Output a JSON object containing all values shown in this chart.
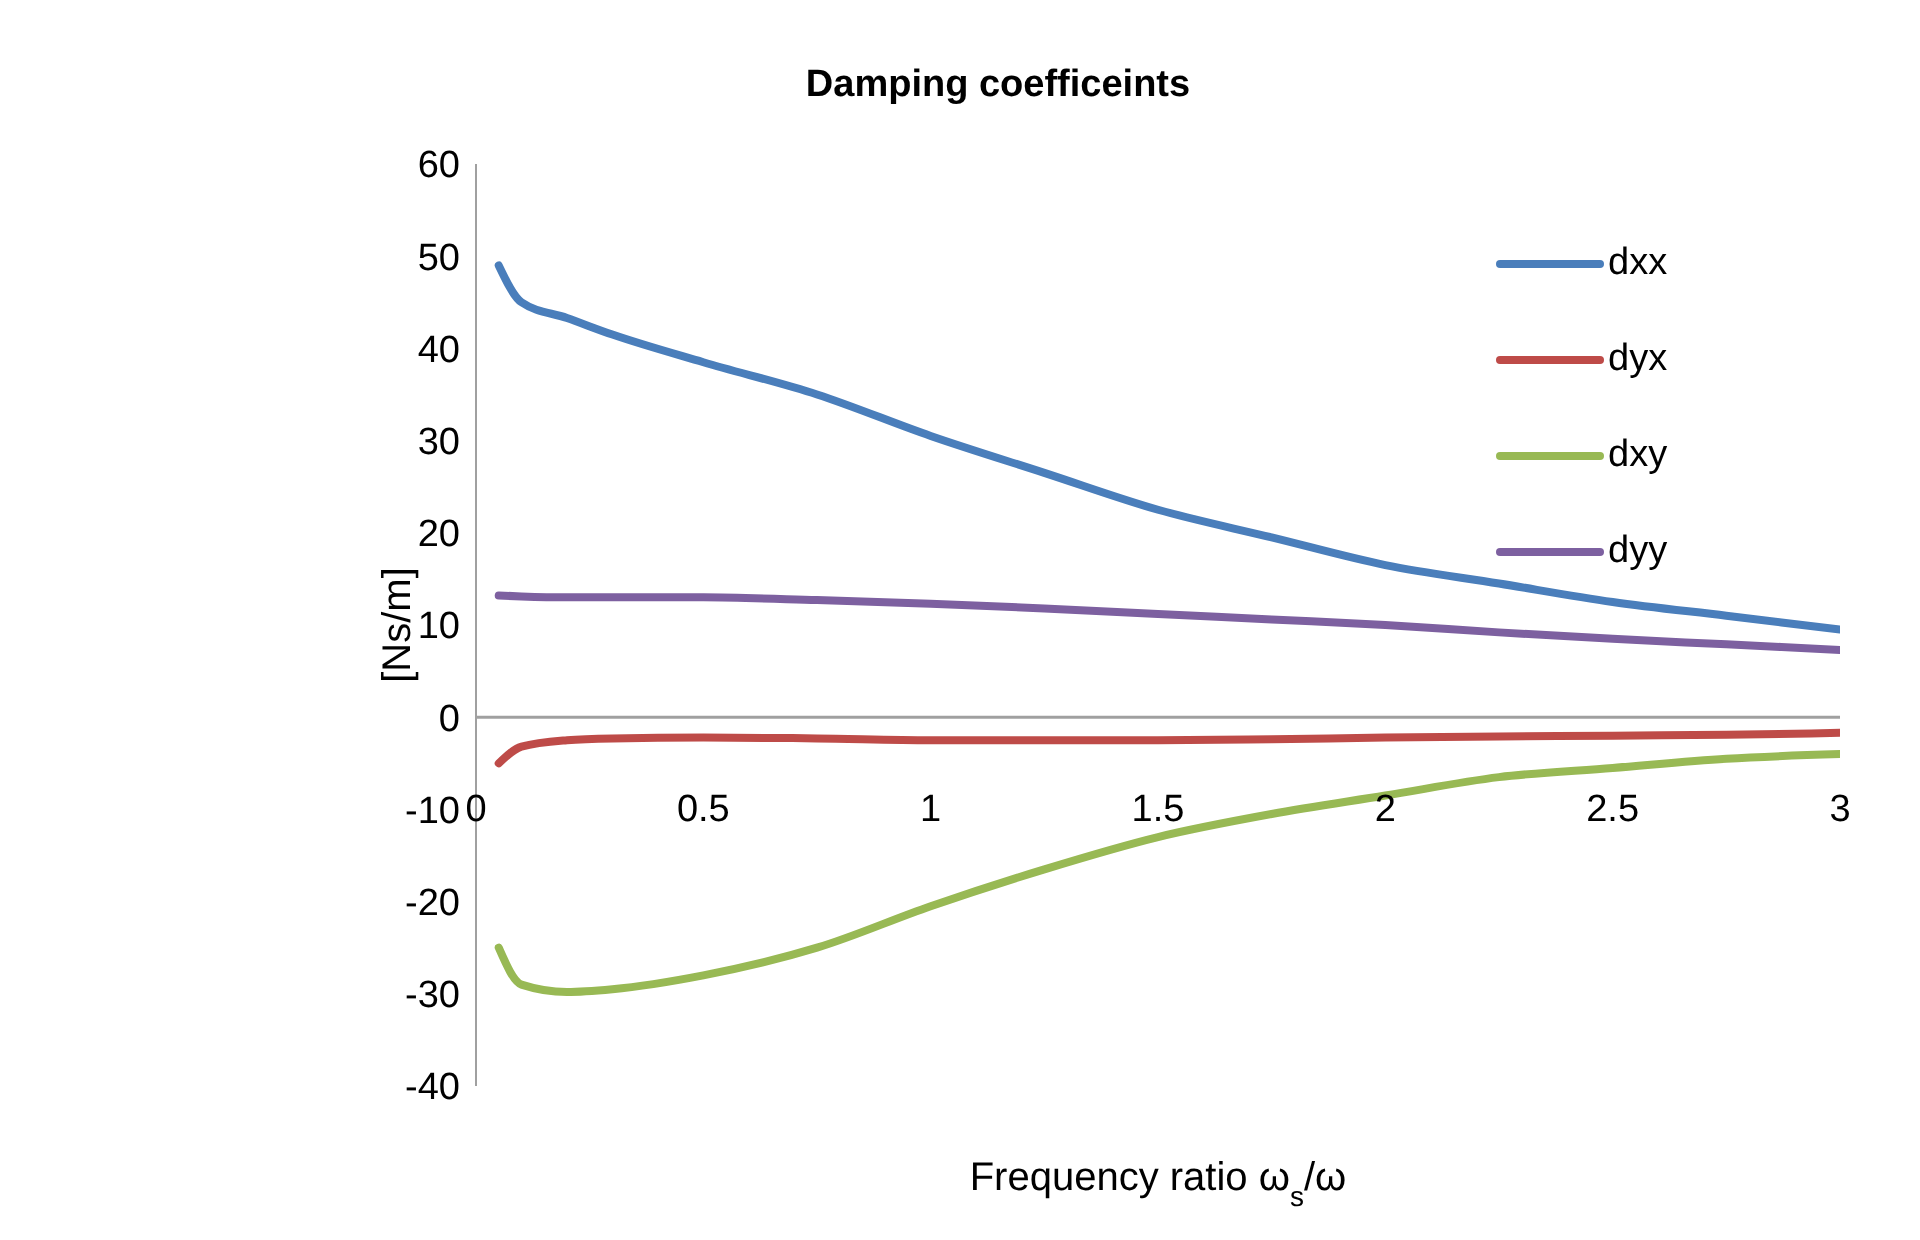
{
  "chart_data": {
    "type": "line",
    "title": "Damping coefficeints",
    "xlabel": "Frequency ratio ω$_{s}$/ω",
    "ylabel": "[Ns/m]",
    "x": [
      0.05,
      0.1,
      0.2,
      0.3,
      0.5,
      0.75,
      1,
      1.25,
      1.5,
      1.75,
      2,
      2.25,
      2.5,
      2.75,
      3
    ],
    "series": [
      {
        "name": "dxx",
        "color": "#4a7ebb",
        "values": [
          49,
          45,
          43.3,
          41.5,
          38.5,
          35,
          30.5,
          26.5,
          22.5,
          19.5,
          16.5,
          14.5,
          12.5,
          11,
          9.5
        ]
      },
      {
        "name": "dyx",
        "color": "#be4b48",
        "values": [
          -5,
          -3.2,
          -2.5,
          -2.3,
          -2.2,
          -2.3,
          -2.5,
          -2.5,
          -2.5,
          -2.4,
          -2.2,
          -2.1,
          -2,
          -1.9,
          -1.7
        ]
      },
      {
        "name": "dxy",
        "color": "#98b954",
        "values": [
          -25,
          -29,
          -29.8,
          -29.5,
          -28,
          -25,
          -20.5,
          -16.5,
          -13,
          -10.5,
          -8.5,
          -6.5,
          -5.5,
          -4.5,
          -4
        ]
      },
      {
        "name": "dyy",
        "color": "#7d60a0",
        "values": [
          13.2,
          13.1,
          13,
          13,
          13,
          12.7,
          12.3,
          11.8,
          11.2,
          10.6,
          10,
          9.2,
          8.5,
          7.9,
          7.3
        ]
      }
    ],
    "xlim": [
      0,
      3
    ],
    "xticks": [
      0,
      0.5,
      1,
      1.5,
      2,
      2.5,
      3
    ],
    "ylim": [
      -40,
      60
    ],
    "yticks": [
      -40,
      -30,
      -20,
      -10,
      0,
      10,
      20,
      30,
      40,
      50,
      60
    ],
    "legend": "top right",
    "marker": "none",
    "line_style": "solid"
  }
}
